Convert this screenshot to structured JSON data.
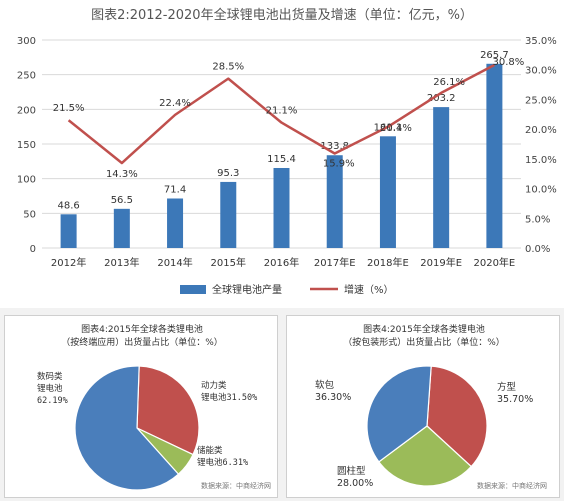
{
  "main_title": "图表2:2012-2020年全球锂电池出货量及增速（单位：亿元，%）",
  "colors": {
    "bar": "#3c78b8",
    "line": "#c0504d",
    "pie_blue": "#4a7ebb",
    "pie_red": "#c0504d",
    "pie_green": "#9bbb59"
  },
  "chart_data": [
    {
      "type": "bar",
      "title": "图表2:2012-2020年全球锂电池出货量及增速（单位：亿元，%）",
      "categories": [
        "2012年",
        "2013年",
        "2014年",
        "2015年",
        "2016年",
        "2017年E",
        "2018年E",
        "2019年E",
        "2020年E"
      ],
      "series": [
        {
          "name": "全球锂电池产量",
          "type": "bar",
          "axis": "left",
          "values": [
            48.6,
            56.5,
            71.4,
            95.3,
            115.4,
            133.8,
            161.1,
            203.2,
            265.7
          ],
          "labels": [
            "48.6",
            "56.5",
            "71.4",
            "95.3",
            "115.4",
            "133.8",
            "161.1",
            "203.2",
            "265.7"
          ]
        },
        {
          "name": "增速（%）",
          "type": "line",
          "axis": "right",
          "values": [
            21.5,
            14.3,
            22.4,
            28.5,
            21.1,
            15.9,
            20.4,
            26.1,
            30.8
          ],
          "labels": [
            "21.5%",
            "14.3%",
            "22.4%",
            "28.5%",
            "21.1%",
            "15.9%",
            "20.4%",
            "26.1%",
            "30.8%"
          ]
        }
      ],
      "y_left": {
        "range": [
          0,
          300
        ],
        "ticks": [
          "0",
          "50",
          "100",
          "150",
          "200",
          "250",
          "300"
        ]
      },
      "y_right": {
        "range": [
          0,
          35
        ],
        "ticks": [
          "0.0%",
          "5.0%",
          "10.0%",
          "15.0%",
          "20.0%",
          "25.0%",
          "30.0%",
          "35.0%"
        ]
      },
      "grid": true,
      "legend_position": "bottom"
    },
    {
      "type": "pie",
      "title_lines": [
        "图表4:2015年全球各类锂电池",
        "（按终端应用）出货量占比（单位：%）"
      ],
      "slices": [
        {
          "name": "数码类锂电池",
          "value": 62.19,
          "label": "数码类\n锂电池\n62.19%"
        },
        {
          "name": "动力类锂电池",
          "value": 31.5,
          "label": "动力类\n锂电池31.50%"
        },
        {
          "name": "储能类锂电池",
          "value": 6.31,
          "label": "储能类\n锂电池6.31%"
        }
      ],
      "source": "数据来源：中商经济网"
    },
    {
      "type": "pie",
      "title_lines": [
        "图表4:2015年全球各类锂电池",
        "（按包装形式）出货量占比（单位：%）"
      ],
      "slices": [
        {
          "name": "软包",
          "value": 36.3,
          "label": "软包\n36.30%"
        },
        {
          "name": "方型",
          "value": 35.7,
          "label": "方型\n35.70%"
        },
        {
          "name": "圆柱型",
          "value": 28.0,
          "label": "圆柱型\n28.00%"
        }
      ],
      "source": "数据来源：中商经济网"
    }
  ]
}
